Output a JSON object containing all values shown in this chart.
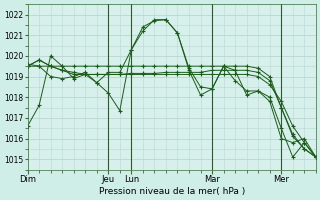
{
  "bg_color": "#d0eee8",
  "plot_bg_color": "#d8f0ec",
  "line_color": "#1a5c1a",
  "grid_color": "#b8d8d0",
  "vline_color": "#2d5a2d",
  "ylabel": "Pression niveau de la mer( hPa )",
  "ylim": [
    1014.5,
    1022.5
  ],
  "yticks": [
    1015,
    1016,
    1017,
    1018,
    1019,
    1020,
    1021,
    1022
  ],
  "day_labels": [
    "Dim",
    "Jeu",
    "Lun",
    "Mar",
    "Mer"
  ],
  "day_positions": [
    0,
    7,
    9,
    16,
    22
  ],
  "xlim_max": 25,
  "series": [
    [
      1016.6,
      1017.6,
      1020.0,
      1019.5,
      1018.9,
      1019.1,
      1018.7,
      1019.2,
      1019.2,
      1020.3,
      1021.4,
      1021.7,
      1021.75,
      1021.1,
      1019.3,
      1018.1,
      1018.4,
      1019.5,
      1019.3,
      1018.1,
      1018.3,
      1017.8,
      1016.0,
      1015.8,
      1016.0,
      1015.1
    ],
    [
      1019.5,
      1019.8,
      1019.5,
      1019.3,
      1019.2,
      1019.1,
      1019.1,
      1019.1,
      1019.1,
      1019.15,
      1019.15,
      1019.15,
      1019.2,
      1019.2,
      1019.2,
      1019.2,
      1019.3,
      1019.3,
      1019.3,
      1019.3,
      1019.2,
      1018.8,
      1017.5,
      1016.2,
      1015.5,
      1015.1
    ],
    [
      1019.5,
      1019.8,
      1019.5,
      1019.3,
      1019.1,
      1019.1,
      1019.1,
      1019.1,
      1019.1,
      1019.1,
      1019.1,
      1019.1,
      1019.1,
      1019.1,
      1019.1,
      1019.1,
      1019.1,
      1019.1,
      1019.1,
      1019.1,
      1019.0,
      1018.6,
      1017.8,
      1016.6,
      1015.8,
      1015.1
    ],
    [
      1019.6,
      1019.5,
      1019.0,
      1018.9,
      1019.0,
      1019.2,
      1018.7,
      1018.2,
      1017.35,
      1020.3,
      1021.2,
      1021.75,
      1021.75,
      1021.1,
      1019.4,
      1018.5,
      1018.4,
      1019.5,
      1018.8,
      1018.3,
      1018.3,
      1018.0,
      1016.5,
      1015.1,
      1015.8,
      1015.1
    ],
    [
      1019.5,
      1019.5,
      1019.5,
      1019.5,
      1019.5,
      1019.5,
      1019.5,
      1019.5,
      1019.5,
      1019.5,
      1019.5,
      1019.5,
      1019.5,
      1019.5,
      1019.5,
      1019.5,
      1019.5,
      1019.5,
      1019.5,
      1019.5,
      1019.4,
      1019.0,
      1017.5,
      1016.1,
      1015.5,
      1015.1
    ]
  ]
}
